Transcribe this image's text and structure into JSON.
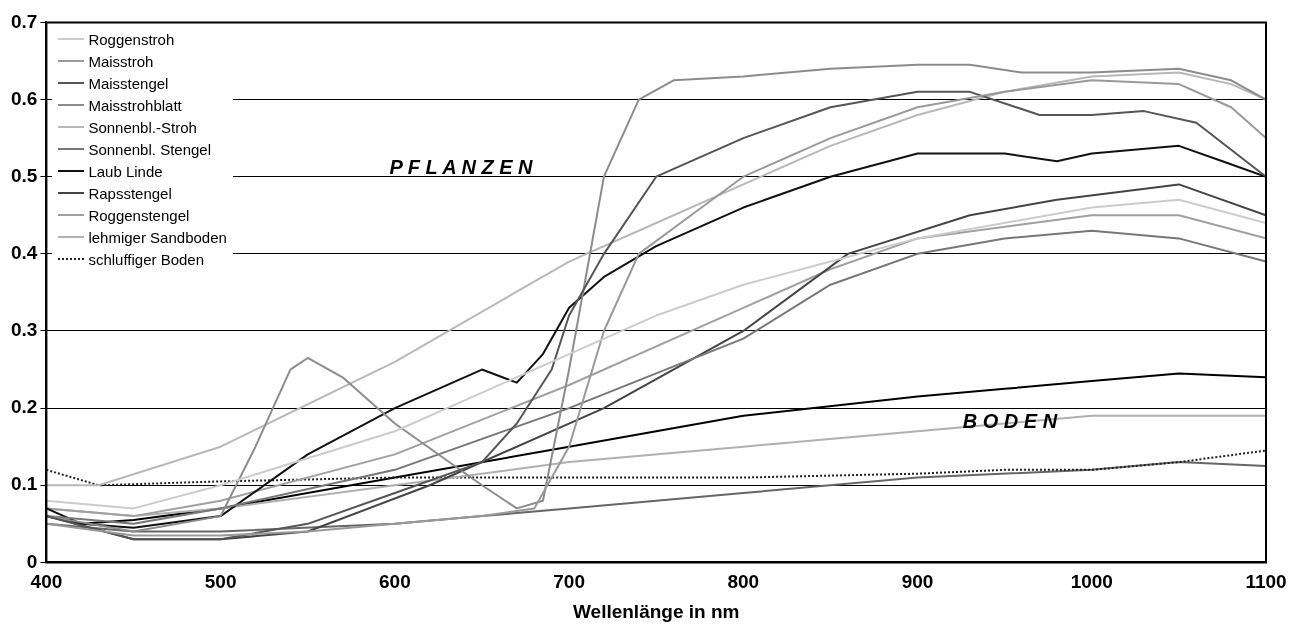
{
  "chart_data": {
    "type": "line",
    "xlabel": "Wellenlänge in nm",
    "xlim": [
      400,
      1100
    ],
    "xticks": [
      400,
      500,
      600,
      700,
      800,
      900,
      1000,
      1100
    ],
    "ylim": [
      0,
      0.7
    ],
    "yticks": [
      0,
      0.1,
      0.2,
      0.3,
      0.4,
      0.5,
      0.6,
      0.7
    ],
    "grid": "y",
    "legend": "top left",
    "annotations": [
      "P F L A N Z E N",
      "B O D E N"
    ],
    "series": [
      {
        "name": "Roggenstroh",
        "color": "#cccccc",
        "x": [
          400,
          450,
          500,
          600,
          700,
          750,
          800,
          900,
          1000,
          1050,
          1100
        ],
        "values": [
          0.08,
          0.07,
          0.1,
          0.17,
          0.27,
          0.32,
          0.36,
          0.42,
          0.46,
          0.47,
          0.44
        ]
      },
      {
        "name": "Maisstroh",
        "color": "#999999",
        "x": [
          400,
          450,
          500,
          550,
          600,
          650,
          680,
          700,
          720,
          740,
          770,
          800,
          850,
          900,
          950,
          1000,
          1050,
          1080,
          1100
        ],
        "values": [
          0.05,
          0.035,
          0.035,
          0.04,
          0.05,
          0.06,
          0.07,
          0.15,
          0.3,
          0.4,
          0.45,
          0.5,
          0.55,
          0.59,
          0.61,
          0.625,
          0.62,
          0.59,
          0.55
        ]
      },
      {
        "name": "Maisstengel",
        "color": "#555555",
        "x": [
          400,
          450,
          500,
          550,
          600,
          650,
          670,
          690,
          700,
          720,
          750,
          800,
          850,
          900,
          930,
          970,
          1000,
          1030,
          1060,
          1100
        ],
        "values": [
          0.06,
          0.03,
          0.03,
          0.05,
          0.09,
          0.13,
          0.18,
          0.25,
          0.32,
          0.4,
          0.5,
          0.55,
          0.59,
          0.61,
          0.61,
          0.58,
          0.58,
          0.585,
          0.57,
          0.5
        ]
      },
      {
        "name": "Maisstrohblatt",
        "color": "#8c8c8c",
        "x": [
          400,
          450,
          500,
          520,
          540,
          550,
          570,
          600,
          650,
          670,
          685,
          700,
          720,
          740,
          760,
          800,
          850,
          900,
          930,
          960,
          1000,
          1050,
          1080,
          1100
        ],
        "values": [
          0.06,
          0.04,
          0.06,
          0.15,
          0.25,
          0.265,
          0.24,
          0.18,
          0.1,
          0.07,
          0.08,
          0.25,
          0.5,
          0.6,
          0.625,
          0.63,
          0.64,
          0.645,
          0.645,
          0.635,
          0.635,
          0.64,
          0.625,
          0.6
        ]
      },
      {
        "name": "Sonnenbl.-Stroh",
        "color": "#b8b8b8",
        "x": [
          400,
          430,
          500,
          600,
          700,
          750,
          800,
          850,
          900,
          950,
          1000,
          1050,
          1080,
          1100
        ],
        "values": [
          0.1,
          0.1,
          0.15,
          0.26,
          0.39,
          0.44,
          0.49,
          0.54,
          0.58,
          0.61,
          0.63,
          0.635,
          0.62,
          0.6
        ]
      },
      {
        "name": "Sonnenbl. Stengel",
        "color": "#777777",
        "x": [
          400,
          450,
          500,
          600,
          700,
          800,
          850,
          900,
          950,
          1000,
          1050,
          1100
        ],
        "values": [
          0.06,
          0.05,
          0.07,
          0.12,
          0.2,
          0.29,
          0.36,
          0.4,
          0.42,
          0.43,
          0.42,
          0.39
        ]
      },
      {
        "name": "Laub Linde",
        "color": "#111111",
        "x": [
          400,
          420,
          450,
          500,
          550,
          600,
          650,
          670,
          685,
          700,
          720,
          750,
          800,
          850,
          900,
          950,
          980,
          1000,
          1050,
          1075,
          1100
        ],
        "values": [
          0.07,
          0.05,
          0.045,
          0.06,
          0.14,
          0.2,
          0.25,
          0.233,
          0.27,
          0.33,
          0.37,
          0.41,
          0.46,
          0.5,
          0.53,
          0.53,
          0.52,
          0.53,
          0.54,
          0.52,
          0.5
        ]
      },
      {
        "name": "Rapsstengel",
        "color": "#444444",
        "x": [
          400,
          450,
          500,
          550,
          620,
          720,
          800,
          860,
          930,
          980,
          1050,
          1100
        ],
        "values": [
          0.06,
          0.03,
          0.03,
          0.04,
          0.1,
          0.2,
          0.3,
          0.4,
          0.45,
          0.47,
          0.49,
          0.45
        ]
      },
      {
        "name": "Roggenstengel",
        "color": "#a0a0a0",
        "x": [
          400,
          450,
          500,
          600,
          700,
          800,
          850,
          900,
          1000,
          1050,
          1100
        ],
        "values": [
          0.07,
          0.06,
          0.08,
          0.14,
          0.23,
          0.33,
          0.38,
          0.42,
          0.45,
          0.45,
          0.42
        ]
      },
      {
        "name": "lehmiger Sandboden",
        "color": "#b0b0b0",
        "x": [
          400,
          450,
          500,
          600,
          700,
          800,
          900,
          950,
          1000,
          1050,
          1100
        ],
        "values": [
          0.07,
          0.06,
          0.07,
          0.1,
          0.13,
          0.15,
          0.17,
          0.18,
          0.19,
          0.19,
          0.19
        ]
      },
      {
        "name": "schluffiger Boden",
        "color": "#222222",
        "line_style": "dotted",
        "x": [
          400,
          430,
          500,
          600,
          700,
          800,
          900,
          950,
          1000,
          1050,
          1100
        ],
        "values": [
          0.12,
          0.1,
          0.105,
          0.11,
          0.11,
          0.11,
          0.115,
          0.12,
          0.12,
          0.13,
          0.145
        ]
      },
      {
        "color": "#000000",
        "x": [
          400,
          420,
          450,
          500,
          600,
          700,
          800,
          900,
          950,
          1000,
          1050,
          1100
        ],
        "values": [
          0.06,
          0.05,
          0.055,
          0.07,
          0.11,
          0.15,
          0.19,
          0.215,
          0.225,
          0.235,
          0.245,
          0.24
        ]
      },
      {
        "color": "#666666",
        "x": [
          400,
          450,
          500,
          600,
          650,
          700,
          800,
          900,
          1000,
          1050,
          1100
        ],
        "values": [
          0.05,
          0.04,
          0.04,
          0.05,
          0.06,
          0.07,
          0.09,
          0.11,
          0.12,
          0.13,
          0.125
        ]
      }
    ]
  }
}
